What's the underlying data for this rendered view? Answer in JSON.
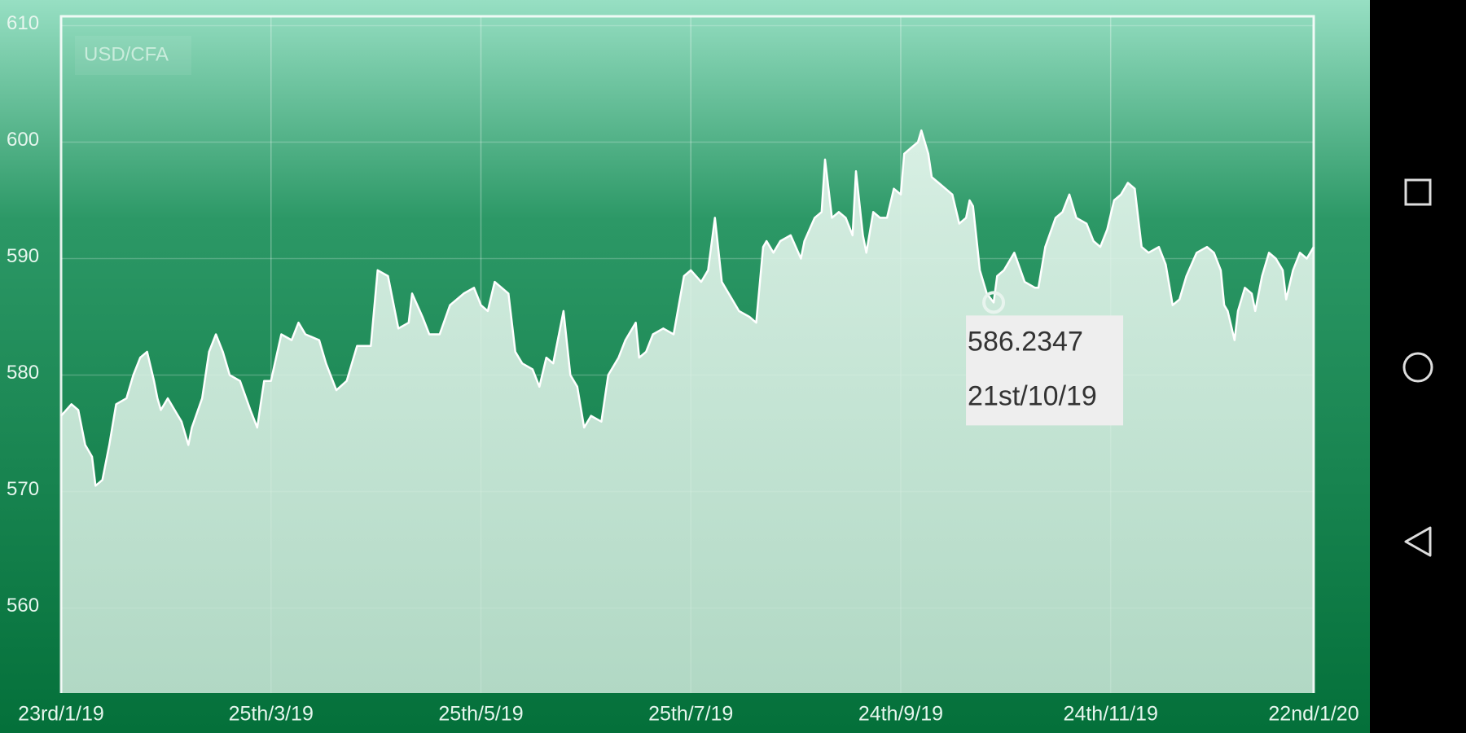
{
  "chart_data": {
    "type": "line",
    "title": "USD/CFA",
    "x": [
      0,
      3,
      5,
      7,
      9,
      10,
      12,
      14,
      16,
      19,
      21,
      23,
      25,
      27,
      28,
      29,
      31,
      33,
      35,
      37,
      38,
      41,
      43,
      45,
      47,
      49,
      52,
      55,
      57,
      59,
      61,
      64,
      67,
      69,
      71,
      75,
      77,
      80,
      83,
      86,
      90,
      92,
      95,
      98,
      101,
      102,
      105,
      107,
      110,
      113,
      117,
      120,
      122,
      124,
      126,
      130,
      132,
      134,
      137,
      139,
      141,
      143,
      146,
      148,
      150,
      152,
      154,
      157,
      159,
      162,
      164,
      167,
      168,
      170,
      172,
      175,
      178,
      181,
      183,
      186,
      188,
      190,
      192,
      194,
      197,
      200,
      202,
      204,
      205,
      207,
      209,
      212,
      215,
      216,
      219,
      221,
      222,
      224,
      226,
      228,
      230,
      231,
      233,
      234,
      236,
      238,
      240,
      242,
      244,
      245,
      247,
      249,
      250,
      252,
      253,
      255,
      257,
      259,
      261,
      263,
      264,
      265,
      267,
      269,
      271,
      272,
      274,
      277,
      280,
      283,
      284,
      286,
      289,
      291,
      293,
      295,
      298,
      300,
      302,
      304,
      306,
      308,
      310,
      312,
      314,
      316,
      319,
      321,
      323,
      325,
      327,
      330,
      333,
      335,
      337,
      338,
      339,
      341,
      342,
      344,
      346,
      347,
      349,
      351,
      353,
      355,
      356,
      358,
      360,
      362,
      364
    ],
    "series": [
      {
        "name": "USD/CFA",
        "color": "#ffffff",
        "values": [
          576.5,
          577.5,
          577,
          574,
          573,
          570.5,
          571,
          574,
          577.5,
          578,
          580,
          581.5,
          582,
          579.5,
          578,
          577,
          578,
          577,
          576,
          574,
          575.5,
          578,
          582,
          583.5,
          582,
          580,
          579.5,
          577,
          575.5,
          579.5,
          579.5,
          583.5,
          583,
          584.5,
          583.5,
          583,
          581,
          578.7,
          579.5,
          582.5,
          582.5,
          589,
          588.5,
          584,
          584.5,
          587,
          585,
          583.5,
          583.5,
          586,
          587,
          587.5,
          586,
          585.5,
          588,
          587,
          582,
          581,
          580.5,
          579,
          581.5,
          581,
          585.5,
          580,
          579,
          575.5,
          576.5,
          576,
          580,
          581.5,
          583,
          584.5,
          581.5,
          582,
          583.5,
          584,
          583.5,
          588.5,
          589,
          588,
          589,
          593.5,
          588,
          587,
          585.5,
          585,
          584.5,
          591,
          591.5,
          590.5,
          591.5,
          592,
          590,
          591.5,
          593.5,
          594,
          598.5,
          593.5,
          594,
          593.5,
          592,
          597.5,
          592,
          590.5,
          594,
          593.5,
          593.5,
          596,
          595.5,
          599,
          599.5,
          600,
          601,
          599,
          597,
          596.5,
          596,
          595.5,
          593,
          593.5,
          595,
          594.5,
          589,
          587,
          586.2347,
          588.5,
          589,
          590.5,
          588,
          587.5,
          587.5,
          591,
          593.5,
          594,
          595.5,
          593.5,
          593,
          591.5,
          591,
          592.5,
          595,
          595.5,
          596.5,
          596,
          591,
          590.5,
          591,
          589.5,
          586,
          586.5,
          588.5,
          590.5,
          591,
          590.5,
          589,
          586,
          585.5,
          583,
          585.5,
          587.5,
          587,
          585.5,
          588.5,
          590.5,
          590,
          589,
          586.5,
          589,
          590.5,
          590,
          591
        ]
      }
    ],
    "xlim": [
      0,
      364
    ],
    "xticks": [
      {
        "value": 0,
        "label": "23rd/1/19"
      },
      {
        "value": 61,
        "label": "25th/3/19"
      },
      {
        "value": 122,
        "label": "25th/5/19"
      },
      {
        "value": 183,
        "label": "25th/7/19"
      },
      {
        "value": 244,
        "label": "24th/9/19"
      },
      {
        "value": 305,
        "label": "24th/11/19"
      },
      {
        "value": 364,
        "label": "22nd/1/20"
      }
    ],
    "ylim": [
      552.7,
      610.8
    ],
    "yticks": [
      560,
      570,
      580,
      590,
      600,
      610
    ],
    "grid": true,
    "tooltip": {
      "value": 586.2347,
      "date": "21st/10/19"
    }
  }
}
